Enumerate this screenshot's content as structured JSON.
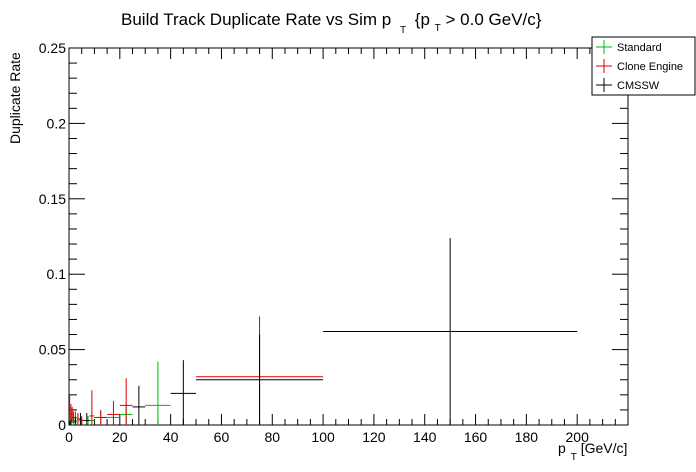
{
  "chart_data": {
    "type": "scatter",
    "title_main": "Build Track Duplicate Rate vs Sim p",
    "title_sub": "T",
    "title_brace_open": "{p",
    "title_sub2": "T",
    "title_rest": " > 0.0 GeV/c}",
    "xlabel_main": "p",
    "xlabel_sub": "T",
    "xlabel_rest": " [GeV/c]",
    "ylabel": "Duplicate Rate",
    "xlim": [
      0,
      220
    ],
    "ylim": [
      0,
      0.25
    ],
    "x_ticks": [
      "0",
      "20",
      "40",
      "60",
      "80",
      "100",
      "120",
      "140",
      "160",
      "180",
      "200"
    ],
    "y_ticks": [
      "0",
      "0.05",
      "0.1",
      "0.15",
      "0.2",
      "0.25"
    ],
    "legend_position": "top-right",
    "legend": [
      {
        "name": "Standard",
        "color": "#00bb00"
      },
      {
        "name": "Clone Engine",
        "color": "#dd0000"
      },
      {
        "name": "CMSSW",
        "color": "#000000"
      }
    ],
    "series": [
      {
        "name": "Standard",
        "color": "#00bb00",
        "points": [
          {
            "x": 0.25,
            "xerr": 0.25,
            "y": 0.004,
            "yerr": 0.004
          },
          {
            "x": 0.75,
            "xerr": 0.25,
            "y": 0.006,
            "yerr": 0.005
          },
          {
            "x": 1.25,
            "xerr": 0.25,
            "y": 0.005,
            "yerr": 0.004
          },
          {
            "x": 2.5,
            "xerr": 0.5,
            "y": 0.003,
            "yerr": 0.003
          },
          {
            "x": 3.5,
            "xerr": 0.5,
            "y": 0.004,
            "yerr": 0.003
          },
          {
            "x": 7.5,
            "xerr": 2.5,
            "y": 0.003,
            "yerr": 0.003
          },
          {
            "x": 12.5,
            "xerr": 2.5,
            "y": 0.005,
            "yerr": 0.004
          },
          {
            "x": 17.5,
            "xerr": 2.5,
            "y": 0.005,
            "yerr": 0.005
          },
          {
            "x": 22.5,
            "xerr": 2.5,
            "y": 0.007,
            "yerr": 0.007
          },
          {
            "x": 35,
            "xerr": 5,
            "y": 0.013,
            "yerr": 0.029
          }
        ]
      },
      {
        "name": "Clone Engine",
        "color": "#dd0000",
        "points": [
          {
            "x": 0.25,
            "xerr": 0.25,
            "y": 0.012,
            "yerr": 0.008
          },
          {
            "x": 0.75,
            "xerr": 0.25,
            "y": 0.008,
            "yerr": 0.006
          },
          {
            "x": 1.25,
            "xerr": 0.25,
            "y": 0.007,
            "yerr": 0.005
          },
          {
            "x": 1.75,
            "xerr": 0.25,
            "y": 0.005,
            "yerr": 0.004
          },
          {
            "x": 2.5,
            "xerr": 0.5,
            "y": 0.005,
            "yerr": 0.004
          },
          {
            "x": 3.5,
            "xerr": 0.5,
            "y": 0.004,
            "yerr": 0.004
          },
          {
            "x": 5,
            "xerr": 1,
            "y": 0.003,
            "yerr": 0.003
          },
          {
            "x": 9,
            "xerr": 1,
            "y": 0.006,
            "yerr": 0.017
          },
          {
            "x": 12.5,
            "xerr": 2.5,
            "y": 0.005,
            "yerr": 0.005
          },
          {
            "x": 17.5,
            "xerr": 2.5,
            "y": 0.007,
            "yerr": 0.009
          },
          {
            "x": 22.5,
            "xerr": 2.5,
            "y": 0.013,
            "yerr": 0.018
          },
          {
            "x": 75,
            "xerr": 25,
            "y": 0.032,
            "yerr": 0.04
          }
        ]
      },
      {
        "name": "CMSSW",
        "color": "#000000",
        "points": [
          {
            "x": 0.25,
            "xerr": 0.25,
            "y": 0.001,
            "yerr": 0.002
          },
          {
            "x": 0.75,
            "xerr": 0.25,
            "y": 0.002,
            "yerr": 0.002
          },
          {
            "x": 2.5,
            "xerr": 0.5,
            "y": 0.002,
            "yerr": 0.003
          },
          {
            "x": 4.5,
            "xerr": 0.5,
            "y": 0.004,
            "yerr": 0.004
          },
          {
            "x": 7,
            "xerr": 1,
            "y": 0.003,
            "yerr": 0.005
          },
          {
            "x": 27.5,
            "xerr": 2.5,
            "y": 0.012,
            "yerr": 0.014
          },
          {
            "x": 45,
            "xerr": 5,
            "y": 0.021,
            "yerr": 0.022
          },
          {
            "x": 75,
            "xerr": 25,
            "y": 0.03,
            "yerr": 0.03
          },
          {
            "x": 150,
            "xerr": 50,
            "y": 0.062,
            "yerr": 0.062
          }
        ]
      }
    ]
  }
}
